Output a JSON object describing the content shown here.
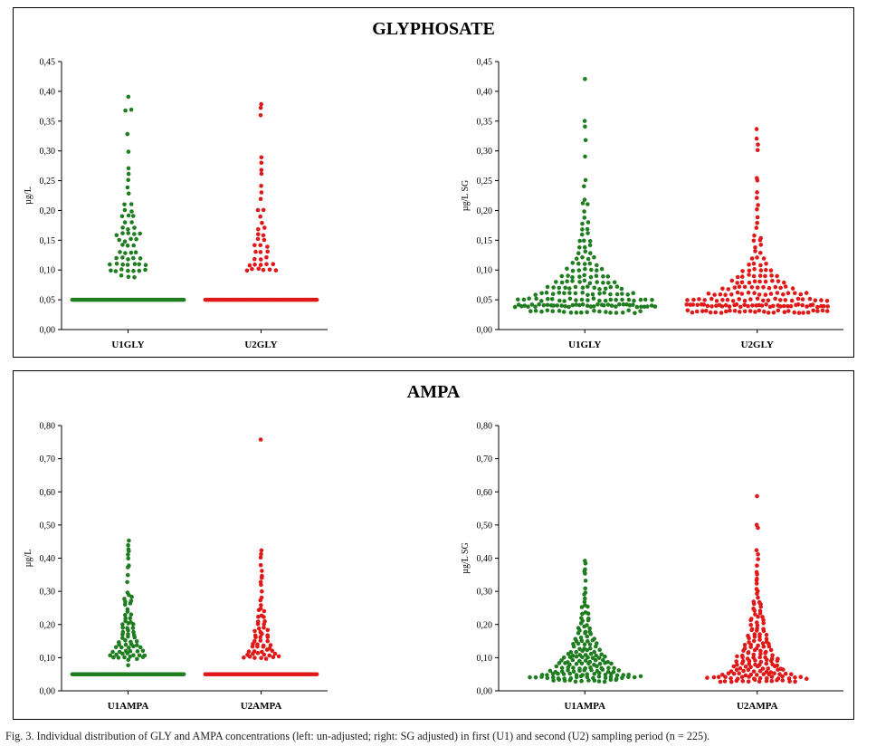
{
  "panels": {
    "glyphosate": {
      "title": "GLYPHOSATE"
    },
    "ampa": {
      "title": "AMPA"
    }
  },
  "caption": "Fig. 3. Individual distribution of GLY and AMPA concentrations (left: un-adjusted; right: SG adjusted) in first (U1) and second (U2) sampling period (n = 225).",
  "colors": {
    "U1": "#1e7d1e",
    "U2": "#e01818"
  },
  "chart_data": [
    {
      "type": "scatter",
      "panel": "GLYPHOSATE",
      "ylabel": "µg/L",
      "ylim": [
        0,
        0.45
      ],
      "yticks": [
        "0,00",
        "0,05",
        "0,10",
        "0,15",
        "0,20",
        "0,25",
        "0,30",
        "0,35",
        "0,40",
        "0,45"
      ],
      "categories": [
        "U1GLY",
        "U2GLY"
      ],
      "series": [
        {
          "category": "U1GLY",
          "color": "#1e7d1e",
          "floor_value": 0.05,
          "floor_count": 150,
          "values": [
            0.39,
            0.37,
            0.37,
            0.33,
            0.3,
            0.27,
            0.26,
            0.25,
            0.24,
            0.23,
            0.21,
            0.21,
            0.2,
            0.2,
            0.19,
            0.19,
            0.19,
            0.18,
            0.18,
            0.17,
            0.17,
            0.17,
            0.16,
            0.16,
            0.16,
            0.16,
            0.16,
            0.15,
            0.15,
            0.15,
            0.15,
            0.14,
            0.14,
            0.14,
            0.13,
            0.13,
            0.13,
            0.13,
            0.12,
            0.12,
            0.12,
            0.12,
            0.12,
            0.11,
            0.11,
            0.11,
            0.11,
            0.11,
            0.11,
            0.11,
            0.1,
            0.1,
            0.1,
            0.1,
            0.1,
            0.1,
            0.1,
            0.09,
            0.09,
            0.09
          ]
        },
        {
          "category": "U2GLY",
          "color": "#e01818",
          "floor_value": 0.05,
          "floor_count": 170,
          "values": [
            0.38,
            0.37,
            0.36,
            0.29,
            0.28,
            0.27,
            0.26,
            0.24,
            0.23,
            0.22,
            0.2,
            0.2,
            0.19,
            0.18,
            0.17,
            0.17,
            0.16,
            0.16,
            0.15,
            0.15,
            0.14,
            0.14,
            0.14,
            0.13,
            0.13,
            0.13,
            0.12,
            0.12,
            0.12,
            0.11,
            0.11,
            0.11,
            0.11,
            0.11,
            0.1,
            0.1,
            0.1,
            0.1,
            0.1,
            0.1
          ]
        }
      ]
    },
    {
      "type": "scatter",
      "panel": "GLYPHOSATE",
      "ylabel": "µg/L SG",
      "ylim": [
        0,
        0.45
      ],
      "yticks": [
        "0,00",
        "0,05",
        "0,10",
        "0,15",
        "0,20",
        "0,25",
        "0,30",
        "0,35",
        "0,40",
        "0,45"
      ],
      "categories": [
        "U1GLY",
        "U2GLY"
      ],
      "series": [
        {
          "category": "U1GLY",
          "color": "#1e7d1e",
          "values": [
            0.42,
            0.35,
            0.34,
            0.32,
            0.29,
            0.25,
            0.24,
            0.22,
            0.21,
            0.21,
            0.2,
            0.19,
            0.18,
            0.18,
            0.17,
            0.17,
            0.16,
            0.16,
            0.15,
            0.15,
            0.15,
            0.14,
            0.14,
            0.14,
            0.13,
            0.13,
            0.13,
            0.12,
            0.12,
            0.12,
            0.12,
            0.11,
            0.11,
            0.11,
            0.11,
            0.11,
            0.1,
            0.1,
            0.1,
            0.1,
            0.1,
            0.1,
            0.1,
            0.09,
            0.09,
            0.09,
            0.09,
            0.09,
            0.09,
            0.09,
            0.09,
            0.09,
            0.08,
            0.08,
            0.08,
            0.08,
            0.08,
            0.08,
            0.08,
            0.08,
            0.08,
            0.08,
            0.08,
            0.07,
            0.07,
            0.07,
            0.07,
            0.07,
            0.07,
            0.07,
            0.07,
            0.07,
            0.07,
            0.07,
            0.07,
            0.07,
            0.07,
            0.06,
            0.06,
            0.06,
            0.06,
            0.06,
            0.06,
            0.06,
            0.06,
            0.06,
            0.06,
            0.06,
            0.06,
            0.06,
            0.06,
            0.06,
            0.06,
            0.06,
            0.06,
            0.05,
            0.05,
            0.05,
            0.05,
            0.05,
            0.05,
            0.05,
            0.05,
            0.05,
            0.05,
            0.05,
            0.05,
            0.05,
            0.05,
            0.05,
            0.05,
            0.05,
            0.05,
            0.05,
            0.05,
            0.05,
            0.05,
            0.05,
            0.05,
            0.04,
            0.04,
            0.04,
            0.04,
            0.04,
            0.04,
            0.04,
            0.04,
            0.04,
            0.04,
            0.04,
            0.04,
            0.04,
            0.04,
            0.04,
            0.04,
            0.04,
            0.04,
            0.04,
            0.04,
            0.04,
            0.04,
            0.04,
            0.04,
            0.04,
            0.04,
            0.04,
            0.04,
            0.04,
            0.04,
            0.04,
            0.04,
            0.04,
            0.04,
            0.04,
            0.04,
            0.04,
            0.04,
            0.04,
            0.04,
            0.03,
            0.03,
            0.03,
            0.03,
            0.03,
            0.03,
            0.03,
            0.03,
            0.03,
            0.03,
            0.03,
            0.03,
            0.03,
            0.03,
            0.03,
            0.03,
            0.03,
            0.03,
            0.03,
            0.03
          ]
        },
        {
          "category": "U2GLY",
          "color": "#e01818",
          "values": [
            0.335,
            0.32,
            0.31,
            0.3,
            0.255,
            0.25,
            0.23,
            0.22,
            0.21,
            0.2,
            0.19,
            0.18,
            0.17,
            0.16,
            0.155,
            0.15,
            0.15,
            0.14,
            0.14,
            0.13,
            0.13,
            0.12,
            0.12,
            0.12,
            0.11,
            0.11,
            0.11,
            0.11,
            0.1,
            0.1,
            0.1,
            0.1,
            0.1,
            0.1,
            0.09,
            0.09,
            0.09,
            0.09,
            0.09,
            0.09,
            0.09,
            0.09,
            0.08,
            0.08,
            0.08,
            0.08,
            0.08,
            0.08,
            0.08,
            0.08,
            0.08,
            0.08,
            0.07,
            0.07,
            0.07,
            0.07,
            0.07,
            0.07,
            0.07,
            0.07,
            0.07,
            0.07,
            0.07,
            0.07,
            0.07,
            0.06,
            0.06,
            0.06,
            0.06,
            0.06,
            0.06,
            0.06,
            0.06,
            0.06,
            0.06,
            0.06,
            0.06,
            0.06,
            0.06,
            0.06,
            0.06,
            0.06,
            0.06,
            0.05,
            0.05,
            0.05,
            0.05,
            0.05,
            0.05,
            0.05,
            0.05,
            0.05,
            0.05,
            0.05,
            0.05,
            0.05,
            0.05,
            0.05,
            0.05,
            0.05,
            0.05,
            0.05,
            0.05,
            0.05,
            0.05,
            0.05,
            0.05,
            0.05,
            0.04,
            0.04,
            0.04,
            0.04,
            0.04,
            0.04,
            0.04,
            0.04,
            0.04,
            0.04,
            0.04,
            0.04,
            0.04,
            0.04,
            0.04,
            0.04,
            0.04,
            0.04,
            0.04,
            0.04,
            0.04,
            0.04,
            0.04,
            0.04,
            0.04,
            0.04,
            0.04,
            0.04,
            0.04,
            0.04,
            0.04,
            0.04,
            0.04,
            0.04,
            0.04,
            0.04,
            0.04,
            0.04,
            0.04,
            0.04,
            0.03,
            0.03,
            0.03,
            0.03,
            0.03,
            0.03,
            0.03,
            0.03,
            0.03,
            0.03,
            0.03,
            0.03,
            0.03,
            0.03,
            0.03,
            0.03,
            0.03,
            0.03,
            0.03,
            0.03,
            0.03,
            0.03,
            0.03,
            0.03,
            0.03,
            0.03,
            0.03,
            0.03,
            0.03,
            0.03
          ]
        }
      ]
    },
    {
      "type": "scatter",
      "panel": "AMPA",
      "ylabel": "µg/L",
      "ylim": [
        0,
        0.8
      ],
      "yticks": [
        "0,00",
        "0,10",
        "0,20",
        "0,30",
        "0,40",
        "0,50",
        "0,60",
        "0,70",
        "0,80"
      ],
      "categories": [
        "U1AMPA",
        "U2AMPA"
      ],
      "series": [
        {
          "category": "U1AMPA",
          "color": "#1e7d1e",
          "floor_value": 0.05,
          "floor_count": 150,
          "values": [
            0.45,
            0.44,
            0.43,
            0.42,
            0.41,
            0.4,
            0.38,
            0.37,
            0.35,
            0.33,
            0.3,
            0.29,
            0.28,
            0.28,
            0.27,
            0.27,
            0.26,
            0.26,
            0.25,
            0.24,
            0.23,
            0.23,
            0.22,
            0.22,
            0.21,
            0.21,
            0.2,
            0.2,
            0.2,
            0.19,
            0.19,
            0.19,
            0.18,
            0.18,
            0.18,
            0.17,
            0.17,
            0.17,
            0.16,
            0.16,
            0.16,
            0.15,
            0.15,
            0.15,
            0.15,
            0.14,
            0.14,
            0.14,
            0.14,
            0.13,
            0.13,
            0.13,
            0.13,
            0.13,
            0.12,
            0.12,
            0.12,
            0.12,
            0.12,
            0.12,
            0.11,
            0.11,
            0.11,
            0.11,
            0.11,
            0.11,
            0.11,
            0.1,
            0.1,
            0.1,
            0.1,
            0.1,
            0.1,
            0.09,
            0.08
          ]
        },
        {
          "category": "U2AMPA",
          "color": "#e01818",
          "floor_value": 0.05,
          "floor_count": 130,
          "values": [
            0.76,
            0.42,
            0.41,
            0.4,
            0.38,
            0.36,
            0.35,
            0.34,
            0.33,
            0.32,
            0.3,
            0.28,
            0.27,
            0.26,
            0.25,
            0.24,
            0.24,
            0.23,
            0.22,
            0.22,
            0.21,
            0.21,
            0.2,
            0.2,
            0.19,
            0.19,
            0.18,
            0.18,
            0.18,
            0.17,
            0.17,
            0.17,
            0.16,
            0.16,
            0.16,
            0.15,
            0.15,
            0.15,
            0.14,
            0.14,
            0.14,
            0.14,
            0.13,
            0.13,
            0.13,
            0.13,
            0.12,
            0.12,
            0.12,
            0.12,
            0.12,
            0.11,
            0.11,
            0.11,
            0.11,
            0.11,
            0.11,
            0.1,
            0.1,
            0.1,
            0.1,
            0.1,
            0.1,
            0.1
          ]
        }
      ]
    },
    {
      "type": "scatter",
      "panel": "AMPA",
      "ylabel": "µg/L SG",
      "ylim": [
        0,
        0.8
      ],
      "yticks": [
        "0,00",
        "0,10",
        "0,20",
        "0,30",
        "0,40",
        "0,50",
        "0,60",
        "0,70",
        "0,80"
      ],
      "categories": [
        "U1AMPA",
        "U2AMPA"
      ],
      "series": [
        {
          "category": "U1AMPA",
          "color": "#1e7d1e",
          "values": [
            0.39,
            0.38,
            0.37,
            0.36,
            0.35,
            0.33,
            0.31,
            0.3,
            0.29,
            0.28,
            0.27,
            0.26,
            0.25,
            0.25,
            0.24,
            0.23,
            0.23,
            0.22,
            0.22,
            0.21,
            0.21,
            0.2,
            0.2,
            0.19,
            0.19,
            0.19,
            0.18,
            0.18,
            0.18,
            0.17,
            0.17,
            0.17,
            0.16,
            0.16,
            0.16,
            0.16,
            0.15,
            0.15,
            0.15,
            0.15,
            0.14,
            0.14,
            0.14,
            0.14,
            0.14,
            0.13,
            0.13,
            0.13,
            0.13,
            0.13,
            0.12,
            0.12,
            0.12,
            0.12,
            0.12,
            0.12,
            0.11,
            0.11,
            0.11,
            0.11,
            0.11,
            0.11,
            0.11,
            0.1,
            0.1,
            0.1,
            0.1,
            0.1,
            0.1,
            0.1,
            0.1,
            0.09,
            0.09,
            0.09,
            0.09,
            0.09,
            0.09,
            0.09,
            0.09,
            0.09,
            0.08,
            0.08,
            0.08,
            0.08,
            0.08,
            0.08,
            0.08,
            0.08,
            0.08,
            0.08,
            0.07,
            0.07,
            0.07,
            0.07,
            0.07,
            0.07,
            0.07,
            0.07,
            0.07,
            0.07,
            0.07,
            0.06,
            0.06,
            0.06,
            0.06,
            0.06,
            0.06,
            0.06,
            0.06,
            0.06,
            0.06,
            0.06,
            0.06,
            0.06,
            0.05,
            0.05,
            0.05,
            0.05,
            0.05,
            0.05,
            0.05,
            0.05,
            0.05,
            0.05,
            0.05,
            0.05,
            0.05,
            0.05,
            0.05,
            0.05,
            0.04,
            0.04,
            0.04,
            0.04,
            0.04,
            0.04,
            0.04,
            0.04,
            0.04,
            0.04,
            0.04,
            0.04,
            0.04,
            0.04,
            0.04,
            0.04,
            0.04,
            0.04,
            0.04,
            0.04,
            0.03,
            0.03,
            0.03,
            0.03,
            0.03,
            0.03,
            0.03,
            0.03,
            0.03,
            0.03,
            0.03,
            0.03
          ]
        },
        {
          "category": "U2AMPA",
          "color": "#e01818",
          "values": [
            0.59,
            0.5,
            0.49,
            0.42,
            0.41,
            0.4,
            0.38,
            0.36,
            0.35,
            0.34,
            0.33,
            0.32,
            0.31,
            0.3,
            0.29,
            0.28,
            0.27,
            0.27,
            0.26,
            0.26,
            0.25,
            0.25,
            0.24,
            0.24,
            0.23,
            0.23,
            0.22,
            0.22,
            0.22,
            0.21,
            0.21,
            0.21,
            0.2,
            0.2,
            0.2,
            0.19,
            0.19,
            0.19,
            0.18,
            0.18,
            0.18,
            0.17,
            0.17,
            0.17,
            0.17,
            0.16,
            0.16,
            0.16,
            0.16,
            0.15,
            0.15,
            0.15,
            0.15,
            0.14,
            0.14,
            0.14,
            0.14,
            0.14,
            0.13,
            0.13,
            0.13,
            0.13,
            0.13,
            0.12,
            0.12,
            0.12,
            0.12,
            0.12,
            0.12,
            0.11,
            0.11,
            0.11,
            0.11,
            0.11,
            0.11,
            0.1,
            0.1,
            0.1,
            0.1,
            0.1,
            0.1,
            0.1,
            0.1,
            0.09,
            0.09,
            0.09,
            0.09,
            0.09,
            0.09,
            0.09,
            0.09,
            0.08,
            0.08,
            0.08,
            0.08,
            0.08,
            0.08,
            0.08,
            0.08,
            0.07,
            0.07,
            0.07,
            0.07,
            0.07,
            0.07,
            0.07,
            0.07,
            0.07,
            0.06,
            0.06,
            0.06,
            0.06,
            0.06,
            0.06,
            0.06,
            0.06,
            0.06,
            0.06,
            0.05,
            0.05,
            0.05,
            0.05,
            0.05,
            0.05,
            0.05,
            0.05,
            0.05,
            0.05,
            0.05,
            0.05,
            0.05,
            0.04,
            0.04,
            0.04,
            0.04,
            0.04,
            0.04,
            0.04,
            0.04,
            0.04,
            0.04,
            0.04,
            0.04,
            0.04,
            0.04,
            0.04,
            0.04,
            0.04,
            0.04,
            0.03,
            0.03,
            0.03,
            0.03,
            0.03,
            0.03,
            0.03,
            0.03,
            0.03,
            0.03,
            0.03,
            0.03,
            0.03,
            0.03
          ]
        }
      ]
    }
  ]
}
